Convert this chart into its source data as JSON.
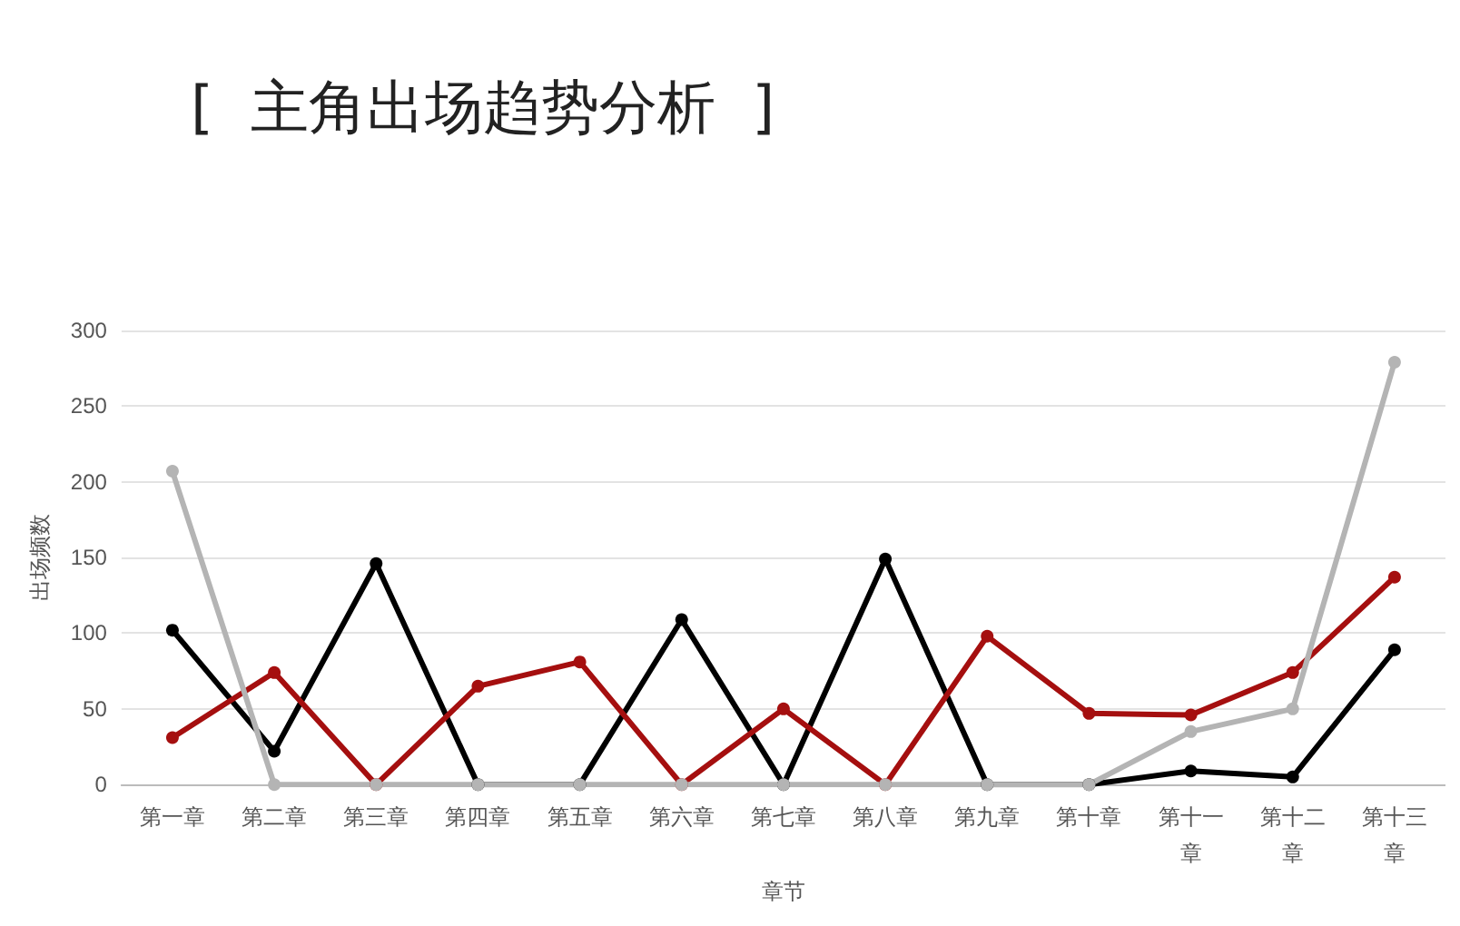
{
  "chart_data": {
    "type": "line",
    "title": "[  主角出场趋势分析  ]",
    "xlabel": "章节",
    "ylabel": "出场频数",
    "categories": [
      "第一章",
      "第二章",
      "第三章",
      "第四章",
      "第五章",
      "第六章",
      "第七章",
      "第八章",
      "第九章",
      "第十章",
      "第十一章",
      "第十二章",
      "第十三章"
    ],
    "series": [
      {
        "color": "#000000",
        "values": [
          102,
          22,
          146,
          0,
          0,
          109,
          0,
          149,
          0,
          0,
          9,
          5,
          89
        ]
      },
      {
        "color": "#a50f0f",
        "values": [
          31,
          74,
          0,
          65,
          81,
          0,
          50,
          0,
          98,
          47,
          46,
          74,
          137
        ]
      },
      {
        "color": "#b4b4b4",
        "values": [
          207,
          0,
          0,
          0,
          0,
          0,
          0,
          0,
          0,
          0,
          35,
          50,
          279
        ]
      }
    ],
    "ylim": [
      0,
      300
    ],
    "yticks": [
      0,
      50,
      100,
      150,
      200,
      250,
      300
    ],
    "grid": "y",
    "marker": "circle",
    "line_style": "solid"
  }
}
